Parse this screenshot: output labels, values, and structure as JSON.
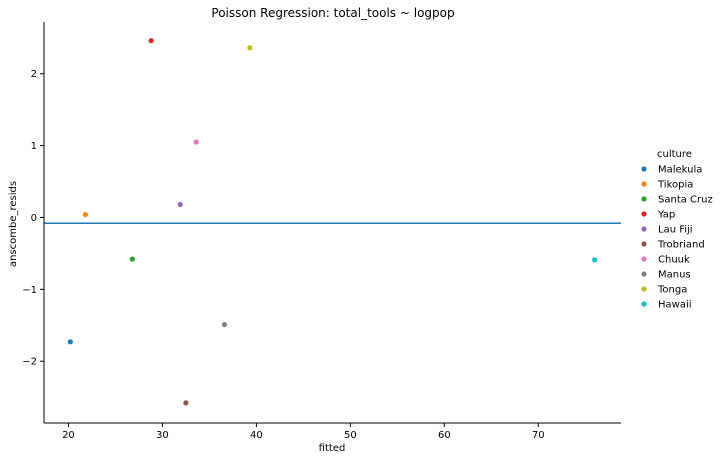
{
  "chart_data": {
    "type": "scatter",
    "title": "Poisson Regression: total_tools ~ logpop",
    "xlabel": "fitted",
    "ylabel": "anscombe_resids",
    "xlim": [
      17.4,
      78.8
    ],
    "ylim": [
      -2.86,
      2.72
    ],
    "xticks": [
      20,
      30,
      40,
      50,
      60,
      70
    ],
    "yticks": [
      -2,
      -1,
      0,
      1,
      2
    ],
    "grid": false,
    "legend": {
      "title": "culture",
      "position": "right"
    },
    "hline": {
      "y": -0.08,
      "color": "#1f77b4"
    },
    "series": [
      {
        "name": "Malekula",
        "color": "#1f77b4",
        "x": 20.2,
        "y": -1.73
      },
      {
        "name": "Tikopia",
        "color": "#ff7f0e",
        "x": 21.8,
        "y": 0.04
      },
      {
        "name": "Santa Cruz",
        "color": "#2ca02c",
        "x": 26.8,
        "y": -0.58
      },
      {
        "name": "Yap",
        "color": "#d62728",
        "x": 28.8,
        "y": 2.46
      },
      {
        "name": "Lau Fiji",
        "color": "#9467bd",
        "x": 31.9,
        "y": 0.18
      },
      {
        "name": "Trobriand",
        "color": "#8c564b",
        "x": 32.5,
        "y": -2.58
      },
      {
        "name": "Chuuk",
        "color": "#e377c2",
        "x": 33.6,
        "y": 1.05
      },
      {
        "name": "Manus",
        "color": "#7f7f7f",
        "x": 36.6,
        "y": -1.49
      },
      {
        "name": "Tonga",
        "color": "#bcbd22",
        "x": 39.3,
        "y": 2.36
      },
      {
        "name": "Hawaii",
        "color": "#17becf",
        "x": 76.0,
        "y": -0.59
      }
    ]
  }
}
